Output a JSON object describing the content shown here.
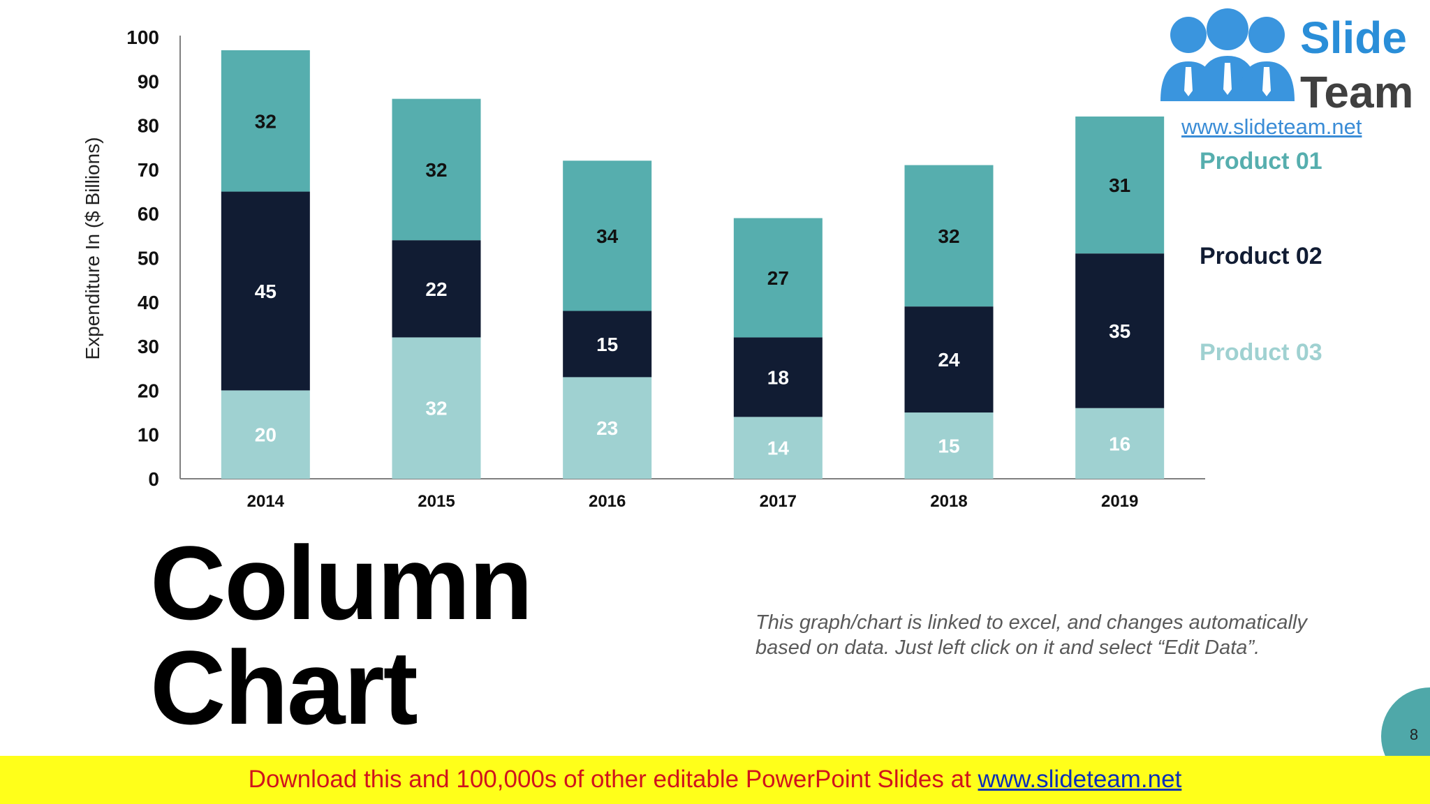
{
  "slide": {
    "title_line1": "Column",
    "title_line2": "Chart",
    "note": "This graph/chart is linked to excel, and changes automatically based on data. Just left click on it and select “Edit Data”.",
    "page_number": "8"
  },
  "logo": {
    "word1": "Slide",
    "word2": "Team",
    "url": "www.slideteam.net"
  },
  "banner": {
    "text": "Download this and 100,000s of other editable PowerPoint Slides at ",
    "link": "www.slideteam.net"
  },
  "chart_data": {
    "type": "bar",
    "stacked": true,
    "title": "",
    "xlabel": "",
    "ylabel": "Expenditure In ($ Billions)",
    "ylim": [
      0,
      100
    ],
    "yticks": [
      0,
      10,
      20,
      30,
      40,
      50,
      60,
      70,
      80,
      90,
      100
    ],
    "grid": false,
    "legend_position": "right",
    "categories": [
      "2014",
      "2015",
      "2016",
      "2017",
      "2018",
      "2019"
    ],
    "series": [
      {
        "name": "Product 03",
        "values": [
          20,
          32,
          23,
          14,
          15,
          16
        ],
        "color": "#9fd1d1",
        "label_color": "#ffffff"
      },
      {
        "name": "Product 02",
        "values": [
          45,
          22,
          15,
          18,
          24,
          35
        ],
        "color": "#111c33",
        "label_color": "#ffffff"
      },
      {
        "name": "Product 01",
        "values": [
          32,
          32,
          34,
          27,
          32,
          31
        ],
        "color": "#56aeae",
        "label_color": "#111111"
      }
    ],
    "legend": [
      {
        "name": "Product 01",
        "color": "#56aeae"
      },
      {
        "name": "Product 02",
        "color": "#111c33"
      },
      {
        "name": "Product 03",
        "color": "#9fd1d1"
      }
    ]
  }
}
